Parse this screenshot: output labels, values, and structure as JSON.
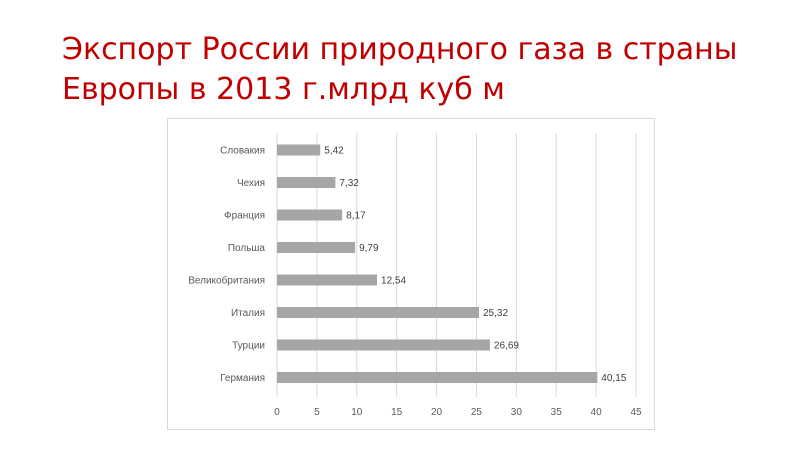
{
  "slide": {
    "title": "Экспорт России природного газа в страны Европы в 2013 г.млрд куб м"
  },
  "colors": {
    "title": "#c00000",
    "bar": "#a6a6a6",
    "grid": "#d9d9d9",
    "text": "#595959"
  },
  "chart_data": {
    "type": "bar",
    "orientation": "horizontal",
    "categories": [
      "Словакия",
      "Чехия",
      "Франция",
      "Польша",
      "Великобритания",
      "Италия",
      "Турции",
      "Германия"
    ],
    "values": [
      5.42,
      7.32,
      8.17,
      9.79,
      12.54,
      25.32,
      26.69,
      40.15
    ],
    "data_labels": [
      "5,42",
      "7,32",
      "8,17",
      "9,79",
      "12,54",
      "25,32",
      "26,69",
      "40,15"
    ],
    "xlim": [
      0,
      45
    ],
    "x_ticks": [
      0,
      5,
      10,
      15,
      20,
      25,
      30,
      35,
      40,
      45
    ],
    "grid": true,
    "legend": "none"
  }
}
